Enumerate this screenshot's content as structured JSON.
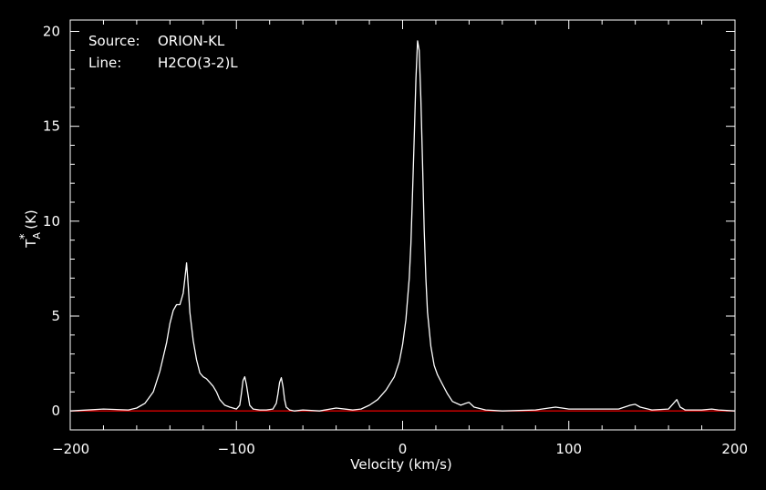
{
  "chart_data": {
    "type": "line",
    "annotations": {
      "source_label": "Source:",
      "source_value": "ORION-KL",
      "line_label": "Line:",
      "line_value": "H2CO(3-2)L"
    },
    "xlabel": "Velocity (km/s)",
    "ylabel": {
      "main": "T",
      "sub": "A",
      "sup": "*",
      "unit": " (K)"
    },
    "xlim": [
      -200,
      200
    ],
    "ylim": [
      -1,
      20.6
    ],
    "x_ticks": [
      -200,
      -100,
      0,
      100,
      200
    ],
    "x_tick_labels": [
      "−200",
      "−100",
      "0",
      "100",
      "200"
    ],
    "y_ticks": [
      0,
      5,
      10,
      15,
      20
    ],
    "y_tick_labels": [
      "0",
      "5",
      "10",
      "15",
      "20"
    ],
    "grid": false,
    "colors": {
      "background": "#000000",
      "frame": "#ffffff",
      "spectrum": "#ffffff",
      "baseline": "#dd0000"
    },
    "baseline": 0,
    "series": [
      {
        "x": [
          -200,
          -180,
          -165,
          -160,
          -155,
          -150,
          -146,
          -142,
          -140,
          -138,
          -136,
          -134,
          -132,
          -131,
          -130,
          -129,
          -128,
          -126,
          -124,
          -122,
          -120,
          -118,
          -116,
          -114,
          -112,
          -110,
          -107,
          -104,
          -100,
          -98,
          -97,
          -96,
          -95,
          -94,
          -92,
          -90,
          -86,
          -82,
          -78,
          -76,
          -75,
          -74,
          -73,
          -72,
          -71,
          -70,
          -68,
          -65,
          -60,
          -50,
          -40,
          -30,
          -25,
          -20,
          -15,
          -10,
          -5,
          -2,
          0,
          2,
          4,
          5,
          6,
          7,
          8,
          9,
          10,
          11,
          12,
          13,
          14,
          15,
          17,
          19,
          21,
          24,
          27,
          30,
          35,
          38,
          40,
          43,
          50,
          60,
          80,
          88,
          92,
          96,
          100,
          130,
          137,
          140,
          143,
          150,
          160,
          163,
          165,
          167,
          170,
          180,
          186,
          190,
          200
        ],
        "y": [
          0.0,
          0.1,
          0.05,
          0.15,
          0.4,
          1.0,
          2.1,
          3.6,
          4.6,
          5.3,
          5.6,
          5.6,
          6.2,
          7.0,
          7.8,
          6.6,
          5.2,
          3.7,
          2.7,
          2.0,
          1.8,
          1.7,
          1.5,
          1.3,
          1.0,
          0.6,
          0.3,
          0.2,
          0.1,
          0.3,
          0.9,
          1.6,
          1.8,
          1.4,
          0.3,
          0.1,
          0.05,
          0.05,
          0.1,
          0.4,
          0.9,
          1.5,
          1.75,
          1.3,
          0.6,
          0.2,
          0.05,
          0.0,
          0.05,
          0.0,
          0.15,
          0.05,
          0.1,
          0.3,
          0.6,
          1.1,
          1.8,
          2.6,
          3.5,
          4.8,
          7.0,
          8.8,
          11.5,
          14.5,
          17.5,
          19.5,
          19.0,
          16.5,
          13.0,
          9.5,
          7.0,
          5.2,
          3.4,
          2.4,
          1.9,
          1.4,
          0.9,
          0.5,
          0.3,
          0.4,
          0.45,
          0.2,
          0.05,
          0.0,
          0.05,
          0.15,
          0.2,
          0.15,
          0.1,
          0.1,
          0.3,
          0.35,
          0.2,
          0.05,
          0.1,
          0.4,
          0.6,
          0.2,
          0.05,
          0.05,
          0.1,
          0.05,
          0.0
        ]
      }
    ]
  }
}
